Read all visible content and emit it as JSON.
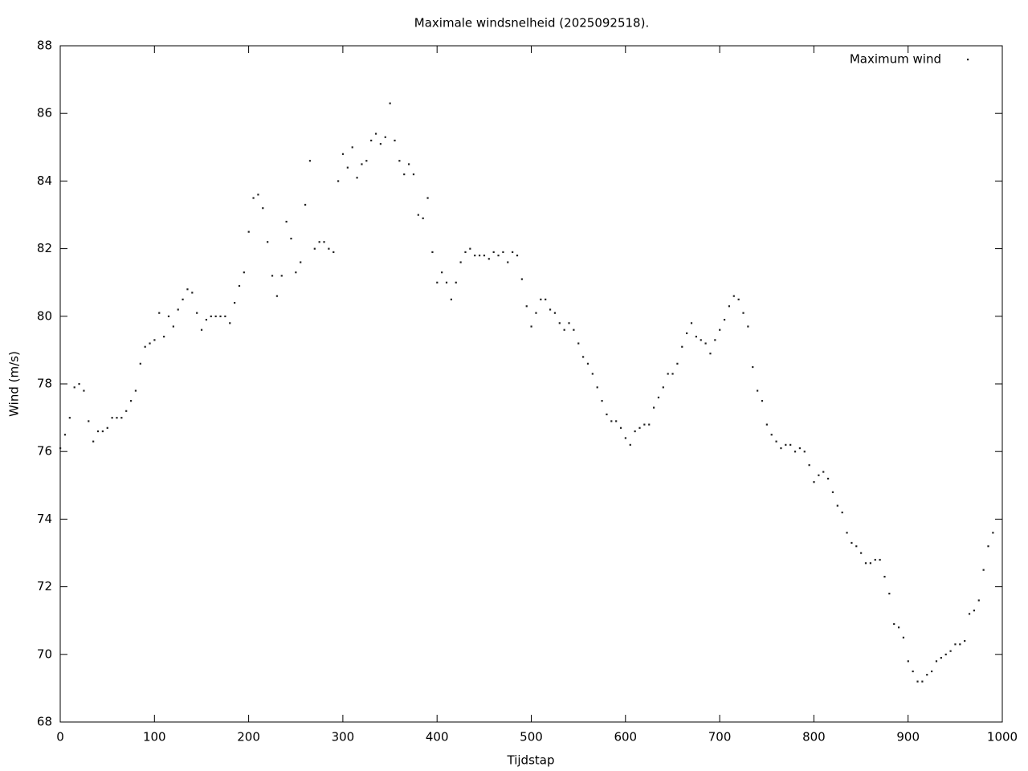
{
  "chart_data": {
    "type": "scatter",
    "title": "Maximale windsnelheid (2025092518).",
    "x_label": "Tijdstap",
    "y_label": "Wind (m/s)",
    "xlim": [
      0,
      1000
    ],
    "ylim": [
      68,
      88
    ],
    "xticks": [
      0,
      100,
      200,
      300,
      400,
      500,
      600,
      700,
      800,
      900,
      1000
    ],
    "yticks": [
      68,
      70,
      72,
      74,
      76,
      78,
      80,
      82,
      84,
      86,
      88
    ],
    "legend": "upper-right",
    "grid": false,
    "series": [
      {
        "name": "Maximum wind",
        "color": "#222222",
        "x": [
          0,
          5,
          10,
          15,
          20,
          25,
          30,
          35,
          40,
          45,
          50,
          55,
          60,
          65,
          70,
          75,
          80,
          85,
          90,
          95,
          100,
          105,
          110,
          115,
          120,
          125,
          130,
          135,
          140,
          145,
          150,
          155,
          160,
          165,
          170,
          175,
          180,
          185,
          190,
          195,
          200,
          205,
          210,
          215,
          220,
          225,
          230,
          235,
          240,
          245,
          250,
          255,
          260,
          265,
          270,
          275,
          280,
          285,
          290,
          295,
          300,
          305,
          310,
          315,
          320,
          325,
          330,
          335,
          340,
          345,
          350,
          355,
          360,
          365,
          370,
          375,
          380,
          385,
          390,
          395,
          400,
          405,
          410,
          415,
          420,
          425,
          430,
          435,
          440,
          445,
          450,
          455,
          460,
          465,
          470,
          475,
          480,
          485,
          490,
          495,
          500,
          505,
          510,
          515,
          520,
          525,
          530,
          535,
          540,
          545,
          550,
          555,
          560,
          565,
          570,
          575,
          580,
          585,
          590,
          595,
          600,
          605,
          610,
          615,
          620,
          625,
          630,
          635,
          640,
          645,
          650,
          655,
          660,
          665,
          670,
          675,
          680,
          685,
          690,
          695,
          700,
          705,
          710,
          715,
          720,
          725,
          730,
          735,
          740,
          745,
          750,
          755,
          760,
          765,
          770,
          775,
          780,
          785,
          790,
          795,
          800,
          805,
          810,
          815,
          820,
          825,
          830,
          835,
          840,
          845,
          850,
          855,
          860,
          865,
          870,
          875,
          880,
          885,
          890,
          895,
          900,
          905,
          910,
          915,
          920,
          925,
          930,
          935,
          940,
          945,
          950,
          955,
          960,
          965,
          970,
          975,
          980,
          985,
          990
        ],
        "values": [
          76.1,
          76.5,
          77.0,
          77.9,
          78.0,
          77.8,
          76.9,
          76.3,
          76.6,
          76.6,
          76.7,
          77.0,
          77.0,
          77.0,
          77.2,
          77.5,
          77.8,
          78.6,
          79.1,
          79.2,
          79.3,
          80.1,
          79.4,
          80.0,
          79.7,
          80.2,
          80.5,
          80.8,
          80.7,
          80.1,
          79.6,
          79.9,
          80.0,
          80.0,
          80.0,
          80.0,
          79.8,
          80.4,
          80.9,
          81.3,
          82.5,
          83.5,
          83.6,
          83.2,
          82.2,
          81.2,
          80.6,
          81.2,
          82.8,
          82.3,
          81.3,
          81.6,
          83.3,
          84.6,
          82.0,
          82.2,
          82.2,
          82.0,
          81.9,
          84.0,
          84.8,
          84.4,
          85.0,
          84.1,
          84.5,
          84.6,
          85.2,
          85.4,
          85.1,
          85.3,
          86.3,
          85.2,
          84.6,
          84.2,
          84.5,
          84.2,
          83.0,
          82.9,
          83.5,
          81.9,
          81.0,
          81.3,
          81.0,
          80.5,
          81.0,
          81.6,
          81.9,
          82.0,
          81.8,
          81.8,
          81.8,
          81.7,
          81.9,
          81.8,
          81.9,
          81.6,
          81.9,
          81.8,
          81.1,
          80.3,
          79.7,
          80.1,
          80.5,
          80.5,
          80.2,
          80.1,
          79.8,
          79.6,
          79.8,
          79.6,
          79.2,
          78.8,
          78.6,
          78.3,
          77.9,
          77.5,
          77.1,
          76.9,
          76.9,
          76.7,
          76.4,
          76.2,
          76.6,
          76.7,
          76.8,
          76.8,
          77.3,
          77.6,
          77.9,
          78.3,
          78.3,
          78.6,
          79.1,
          79.5,
          79.8,
          79.4,
          79.3,
          79.2,
          78.9,
          79.3,
          79.6,
          79.9,
          80.3,
          80.6,
          80.5,
          80.1,
          79.7,
          78.5,
          77.8,
          77.5,
          76.8,
          76.5,
          76.3,
          76.1,
          76.2,
          76.2,
          76.0,
          76.1,
          76.0,
          75.6,
          75.1,
          75.3,
          75.4,
          75.2,
          74.8,
          74.4,
          74.2,
          73.6,
          73.3,
          73.2,
          73.0,
          72.7,
          72.7,
          72.8,
          72.8,
          72.3,
          71.8,
          70.9,
          70.8,
          70.5,
          69.8,
          69.5,
          69.2,
          69.2,
          69.4,
          69.5,
          69.8,
          69.9,
          70.0,
          70.1,
          70.3,
          70.3,
          70.4,
          71.2,
          71.3,
          71.6,
          72.5,
          73.2,
          73.6
        ]
      }
    ]
  }
}
